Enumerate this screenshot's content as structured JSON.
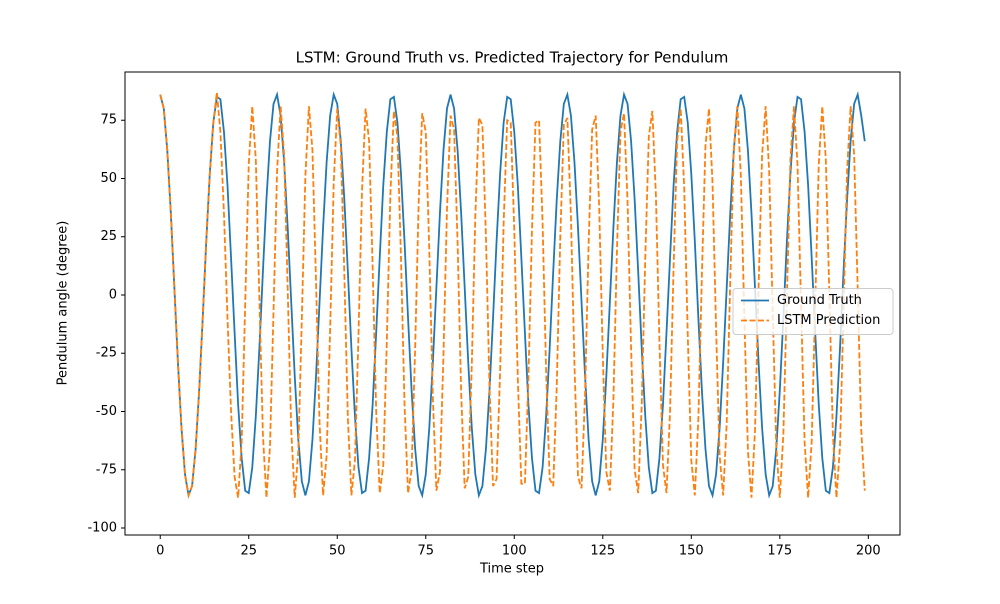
{
  "chart_data": {
    "type": "line",
    "title": "LSTM: Ground Truth vs. Predicted Trajectory for Pendulum",
    "xlabel": "Time step",
    "ylabel": "Pendulum angle (degree)",
    "x": [
      0,
      1,
      2,
      3,
      4,
      5,
      6,
      7,
      8,
      9,
      10,
      11,
      12,
      13,
      14,
      15,
      16,
      17,
      18,
      19,
      20,
      21,
      22,
      23,
      24,
      25,
      26,
      27,
      28,
      29,
      30,
      31,
      32,
      33,
      34,
      35,
      36,
      37,
      38,
      39,
      40,
      41,
      42,
      43,
      44,
      45,
      46,
      47,
      48,
      49,
      50,
      51,
      52,
      53,
      54,
      55,
      56,
      57,
      58,
      59,
      60,
      61,
      62,
      63,
      64,
      65,
      66,
      67,
      68,
      69,
      70,
      71,
      72,
      73,
      74,
      75,
      76,
      77,
      78,
      79,
      80,
      81,
      82,
      83,
      84,
      85,
      86,
      87,
      88,
      89,
      90,
      91,
      92,
      93,
      94,
      95,
      96,
      97,
      98,
      99,
      100,
      101,
      102,
      103,
      104,
      105,
      106,
      107,
      108,
      109,
      110,
      111,
      112,
      113,
      114,
      115,
      116,
      117,
      118,
      119,
      120,
      121,
      122,
      123,
      124,
      125,
      126,
      127,
      128,
      129,
      130,
      131,
      132,
      133,
      134,
      135,
      136,
      137,
      138,
      139,
      140,
      141,
      142,
      143,
      144,
      145,
      146,
      147,
      148,
      149,
      150,
      151,
      152,
      153,
      154,
      155,
      156,
      157,
      158,
      159,
      160,
      161,
      162,
      163,
      164,
      165,
      166,
      167,
      168,
      169,
      170,
      171,
      172,
      173,
      174,
      175,
      176,
      177,
      178,
      179,
      180,
      181,
      182,
      183,
      184,
      185,
      186,
      187,
      188,
      189,
      190,
      191,
      192,
      193,
      194,
      195,
      196,
      197,
      198,
      199
    ],
    "series": [
      {
        "name": "Ground Truth",
        "color": "#1f77b4",
        "dash": false,
        "values": [
          86,
          80,
          62,
          35,
          3,
          -29,
          -57,
          -77,
          -86,
          -82,
          -66,
          -41,
          -10,
          23,
          52,
          74,
          85,
          84,
          70,
          47,
          16,
          -16,
          -47,
          -70,
          -84,
          -85,
          -74,
          -52,
          -23,
          10,
          41,
          66,
          82,
          86,
          77,
          57,
          29,
          -3,
          -35,
          -62,
          -80,
          -86,
          -80,
          -62,
          -35,
          -3,
          29,
          57,
          77,
          86,
          82,
          66,
          41,
          10,
          -23,
          -52,
          -74,
          -85,
          -84,
          -70,
          -47,
          -16,
          16,
          47,
          70,
          84,
          85,
          74,
          52,
          23,
          -10,
          -41,
          -66,
          -82,
          -86,
          -77,
          -57,
          -29,
          3,
          35,
          62,
          80,
          86,
          80,
          62,
          35,
          3,
          -29,
          -57,
          -77,
          -86,
          -82,
          -66,
          -41,
          -10,
          23,
          52,
          74,
          85,
          84,
          70,
          47,
          16,
          -16,
          -47,
          -70,
          -84,
          -85,
          -74,
          -52,
          -23,
          10,
          41,
          66,
          82,
          86,
          77,
          57,
          29,
          -3,
          -35,
          -62,
          -80,
          -86,
          -80,
          -62,
          -35,
          -3,
          29,
          57,
          77,
          86,
          82,
          66,
          41,
          10,
          -23,
          -52,
          -74,
          -85,
          -84,
          -70,
          -47,
          -16,
          16,
          47,
          70,
          84,
          85,
          74,
          52,
          23,
          -10,
          -41,
          -66,
          -82,
          -86,
          -77,
          -57,
          -29,
          3,
          35,
          62,
          80,
          86,
          80,
          62,
          35,
          3,
          -29,
          -57,
          -77,
          -86,
          -82,
          -66,
          -41,
          -10,
          23,
          52,
          74,
          85,
          84,
          70,
          47,
          16,
          -16,
          -47,
          -70,
          -84,
          -85,
          -74,
          -52,
          -23,
          10,
          41,
          66,
          82,
          86,
          77,
          66
        ]
      },
      {
        "name": "LSTM Prediction",
        "color": "#ff7f0e",
        "dash": true,
        "values": [
          86,
          80,
          62,
          35,
          3,
          -29,
          -57,
          -77,
          -86,
          -82,
          -66,
          -41,
          -10,
          23,
          52,
          74,
          87,
          70,
          35,
          -10,
          -50,
          -78,
          -87,
          -63,
          -4,
          56,
          81,
          58,
          -1,
          -60,
          -87,
          -65,
          -7,
          53,
          81,
          60,
          3,
          -58,
          -87,
          -67,
          -10,
          51,
          81,
          62,
          6,
          -55,
          -86,
          -69,
          -14,
          48,
          80,
          64,
          9,
          -53,
          -86,
          -71,
          -17,
          45,
          80,
          66,
          12,
          -50,
          -85,
          -73,
          -20,
          43,
          79,
          68,
          16,
          -47,
          -85,
          -75,
          -23,
          40,
          78,
          70,
          19,
          -44,
          -84,
          -76,
          -26,
          37,
          77,
          71,
          22,
          -42,
          -83,
          -78,
          -30,
          34,
          76,
          73,
          25,
          -39,
          -82,
          -79,
          -33,
          31,
          75,
          74,
          28,
          -36,
          -81,
          -81,
          -36,
          28,
          74,
          75,
          31,
          -33,
          -79,
          -82,
          -39,
          25,
          73,
          76,
          34,
          -30,
          -78,
          -83,
          -42,
          22,
          71,
          77,
          37,
          -26,
          -76,
          -84,
          -45,
          19,
          70,
          78,
          40,
          -23,
          -75,
          -85,
          -47,
          16,
          68,
          79,
          43,
          -20,
          -73,
          -85,
          -50,
          12,
          66,
          80,
          46,
          -17,
          -71,
          -86,
          -53,
          9,
          64,
          80,
          48,
          -14,
          -69,
          -86,
          -55,
          6,
          62,
          81,
          51,
          -10,
          -67,
          -87,
          -58,
          3,
          60,
          81,
          53,
          -7,
          -65,
          -87,
          -60,
          -1,
          58,
          81,
          56,
          -4,
          -63,
          -87,
          -63,
          -4,
          56,
          81,
          58,
          0,
          -60,
          -87,
          -65,
          -7,
          53,
          81,
          60,
          3,
          -58,
          -84
        ]
      }
    ],
    "xlim": [
      -9.95,
      208.95
    ],
    "ylim": [
      -103,
      95.7
    ],
    "xticks": [
      0,
      25,
      50,
      75,
      100,
      125,
      150,
      175,
      200
    ],
    "yticks": [
      -100,
      -75,
      -50,
      -25,
      0,
      25,
      50,
      75
    ],
    "grid": false,
    "legend": "center right"
  }
}
